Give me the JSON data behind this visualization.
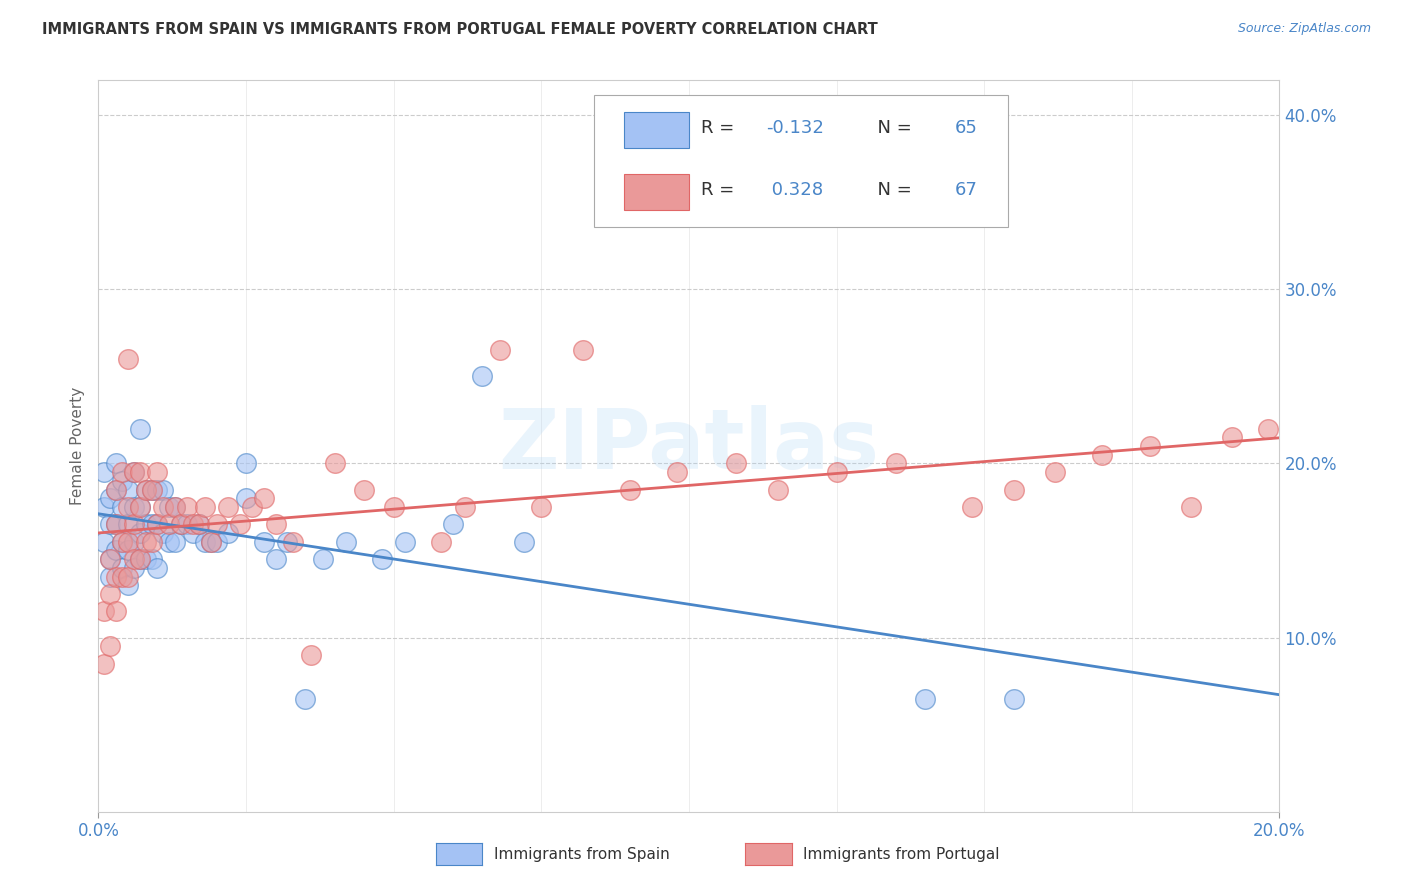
{
  "title": "IMMIGRANTS FROM SPAIN VS IMMIGRANTS FROM PORTUGAL FEMALE POVERTY CORRELATION CHART",
  "source": "Source: ZipAtlas.com",
  "ylabel": "Female Poverty",
  "xlabel_spain": "Immigrants from Spain",
  "xlabel_portugal": "Immigrants from Portugal",
  "r_spain": -0.132,
  "n_spain": 65,
  "r_portugal": 0.328,
  "n_portugal": 67,
  "xlim": [
    0.0,
    0.2
  ],
  "ylim": [
    0.0,
    0.42
  ],
  "yticks": [
    0.1,
    0.2,
    0.3,
    0.4
  ],
  "ytick_labels": [
    "10.0%",
    "20.0%",
    "30.0%",
    "40.0%"
  ],
  "xtick_labels_show": [
    "0.0%",
    "20.0%"
  ],
  "xtick_positions_show": [
    0.0,
    0.2
  ],
  "xtick_minor_positions": [
    0.025,
    0.05,
    0.075,
    0.1,
    0.125,
    0.15,
    0.175
  ],
  "color_spain": "#a4c2f4",
  "color_portugal": "#ea9999",
  "color_spain_line": "#4a86c8",
  "color_portugal_line": "#e06666",
  "color_text_blue": "#4a86c8",
  "color_text_dark": "#333333",
  "background_color": "#ffffff",
  "grid_color": "#cccccc",
  "spain_scatter_x": [
    0.001,
    0.001,
    0.001,
    0.002,
    0.002,
    0.002,
    0.002,
    0.003,
    0.003,
    0.003,
    0.003,
    0.004,
    0.004,
    0.004,
    0.004,
    0.005,
    0.005,
    0.005,
    0.005,
    0.006,
    0.006,
    0.006,
    0.006,
    0.007,
    0.007,
    0.007,
    0.007,
    0.008,
    0.008,
    0.008,
    0.009,
    0.009,
    0.009,
    0.01,
    0.01,
    0.01,
    0.011,
    0.011,
    0.012,
    0.012,
    0.013,
    0.013,
    0.014,
    0.015,
    0.016,
    0.017,
    0.018,
    0.019,
    0.02,
    0.022,
    0.025,
    0.025,
    0.028,
    0.03,
    0.032,
    0.035,
    0.038,
    0.042,
    0.048,
    0.052,
    0.06,
    0.065,
    0.072,
    0.14,
    0.155
  ],
  "spain_scatter_y": [
    0.155,
    0.175,
    0.195,
    0.135,
    0.145,
    0.165,
    0.18,
    0.15,
    0.165,
    0.185,
    0.2,
    0.14,
    0.155,
    0.175,
    0.19,
    0.13,
    0.15,
    0.165,
    0.185,
    0.14,
    0.155,
    0.175,
    0.195,
    0.145,
    0.16,
    0.175,
    0.22,
    0.145,
    0.165,
    0.185,
    0.145,
    0.165,
    0.185,
    0.14,
    0.165,
    0.185,
    0.16,
    0.185,
    0.155,
    0.175,
    0.155,
    0.175,
    0.165,
    0.165,
    0.16,
    0.165,
    0.155,
    0.155,
    0.155,
    0.16,
    0.18,
    0.2,
    0.155,
    0.145,
    0.155,
    0.065,
    0.145,
    0.155,
    0.145,
    0.155,
    0.165,
    0.25,
    0.155,
    0.065,
    0.065
  ],
  "portugal_scatter_x": [
    0.001,
    0.001,
    0.002,
    0.002,
    0.002,
    0.003,
    0.003,
    0.003,
    0.003,
    0.004,
    0.004,
    0.004,
    0.005,
    0.005,
    0.005,
    0.005,
    0.006,
    0.006,
    0.006,
    0.007,
    0.007,
    0.007,
    0.008,
    0.008,
    0.009,
    0.009,
    0.01,
    0.01,
    0.011,
    0.012,
    0.013,
    0.014,
    0.015,
    0.016,
    0.017,
    0.018,
    0.019,
    0.02,
    0.022,
    0.024,
    0.026,
    0.028,
    0.03,
    0.033,
    0.036,
    0.04,
    0.045,
    0.05,
    0.058,
    0.062,
    0.068,
    0.075,
    0.082,
    0.09,
    0.098,
    0.108,
    0.115,
    0.125,
    0.135,
    0.148,
    0.155,
    0.162,
    0.17,
    0.178,
    0.185,
    0.192,
    0.198
  ],
  "portugal_scatter_y": [
    0.085,
    0.115,
    0.095,
    0.125,
    0.145,
    0.115,
    0.135,
    0.165,
    0.185,
    0.135,
    0.155,
    0.195,
    0.135,
    0.155,
    0.175,
    0.26,
    0.145,
    0.165,
    0.195,
    0.145,
    0.175,
    0.195,
    0.155,
    0.185,
    0.155,
    0.185,
    0.165,
    0.195,
    0.175,
    0.165,
    0.175,
    0.165,
    0.175,
    0.165,
    0.165,
    0.175,
    0.155,
    0.165,
    0.175,
    0.165,
    0.175,
    0.18,
    0.165,
    0.155,
    0.09,
    0.2,
    0.185,
    0.175,
    0.155,
    0.175,
    0.265,
    0.175,
    0.265,
    0.185,
    0.195,
    0.2,
    0.185,
    0.195,
    0.2,
    0.175,
    0.185,
    0.195,
    0.205,
    0.21,
    0.175,
    0.215,
    0.22
  ]
}
